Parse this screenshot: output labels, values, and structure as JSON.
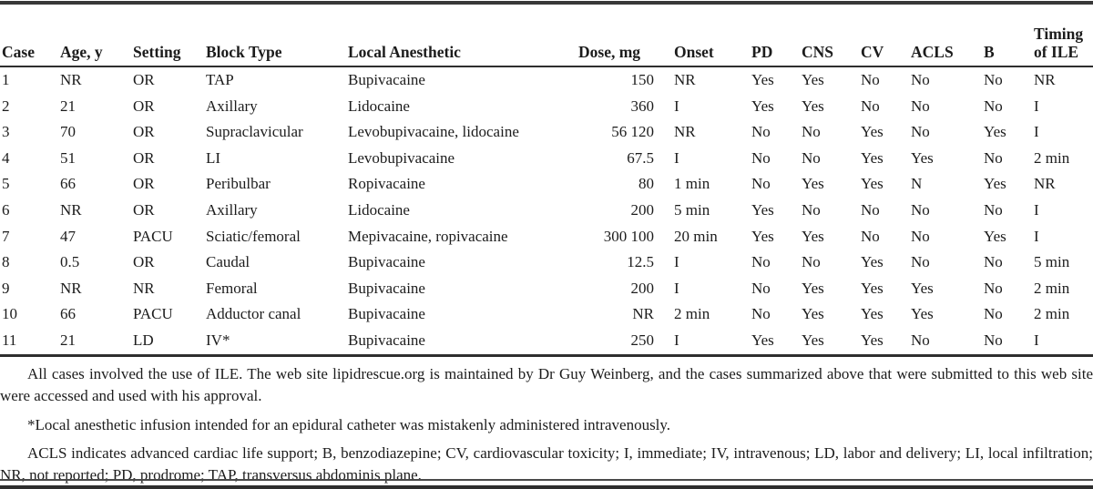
{
  "table": {
    "columns": [
      "Case",
      "Age, y",
      "Setting",
      "Block Type",
      "Local Anesthetic",
      "Dose, mg",
      "Onset",
      "PD",
      "CNS",
      "CV",
      "ACLS",
      "B",
      "Timing of ILE"
    ],
    "rows": [
      [
        "1",
        "NR",
        "OR",
        "TAP",
        "Bupivacaine",
        "150",
        "NR",
        "Yes",
        "Yes",
        "No",
        "No",
        "No",
        "NR"
      ],
      [
        "2",
        "21",
        "OR",
        "Axillary",
        "Lidocaine",
        "360",
        "I",
        "Yes",
        "Yes",
        "No",
        "No",
        "No",
        "I"
      ],
      [
        "3",
        "70",
        "OR",
        "Supraclavicular",
        "Levobupivacaine, lidocaine",
        "56 120",
        "NR",
        "No",
        "No",
        "Yes",
        "No",
        "Yes",
        "I"
      ],
      [
        "4",
        "51",
        "OR",
        "LI",
        "Levobupivacaine",
        "67.5",
        "I",
        "No",
        "No",
        "Yes",
        "Yes",
        "No",
        "2 min"
      ],
      [
        "5",
        "66",
        "OR",
        "Peribulbar",
        "Ropivacaine",
        "80",
        "1 min",
        "No",
        "Yes",
        "Yes",
        "N",
        "Yes",
        "NR"
      ],
      [
        "6",
        "NR",
        "OR",
        "Axillary",
        "Lidocaine",
        "200",
        "5 min",
        "Yes",
        "No",
        "No",
        "No",
        "No",
        "I"
      ],
      [
        "7",
        "47",
        "PACU",
        "Sciatic/femoral",
        "Mepivacaine, ropivacaine",
        "300 100",
        "20 min",
        "Yes",
        "Yes",
        "No",
        "No",
        "Yes",
        "I"
      ],
      [
        "8",
        "0.5",
        "OR",
        "Caudal",
        "Bupivacaine",
        "12.5",
        "I",
        "No",
        "No",
        "Yes",
        "No",
        "No",
        "5 min"
      ],
      [
        "9",
        "NR",
        "NR",
        "Femoral",
        "Bupivacaine",
        "200",
        "I",
        "No",
        "Yes",
        "Yes",
        "Yes",
        "No",
        "2 min"
      ],
      [
        "10",
        "66",
        "PACU",
        "Adductor canal",
        "Bupivacaine",
        "NR",
        "2 min",
        "No",
        "Yes",
        "Yes",
        "Yes",
        "No",
        "2 min"
      ],
      [
        "11",
        "21",
        "LD",
        "IV*",
        "Bupivacaine",
        "250",
        "I",
        "Yes",
        "Yes",
        "Yes",
        "No",
        "No",
        "I"
      ]
    ]
  },
  "footnotes": {
    "general": "All cases involved the use of ILE. The web site lipidrescue.org is maintained by Dr Guy Weinberg, and the cases summarized above that were submitted to this web site were accessed and used with his approval.",
    "asterisk": "*Local anesthetic infusion intended for an epidural catheter was mistakenly administered intravenously.",
    "abbreviations": "ACLS indicates advanced cardiac life support; B, benzodiazepine; CV, cardiovascular toxicity; I, immediate; IV, intravenous; LD, labor and delivery; LI, local infiltration; NR, not reported; PD, prodrome; TAP, transversus abdominis plane."
  }
}
